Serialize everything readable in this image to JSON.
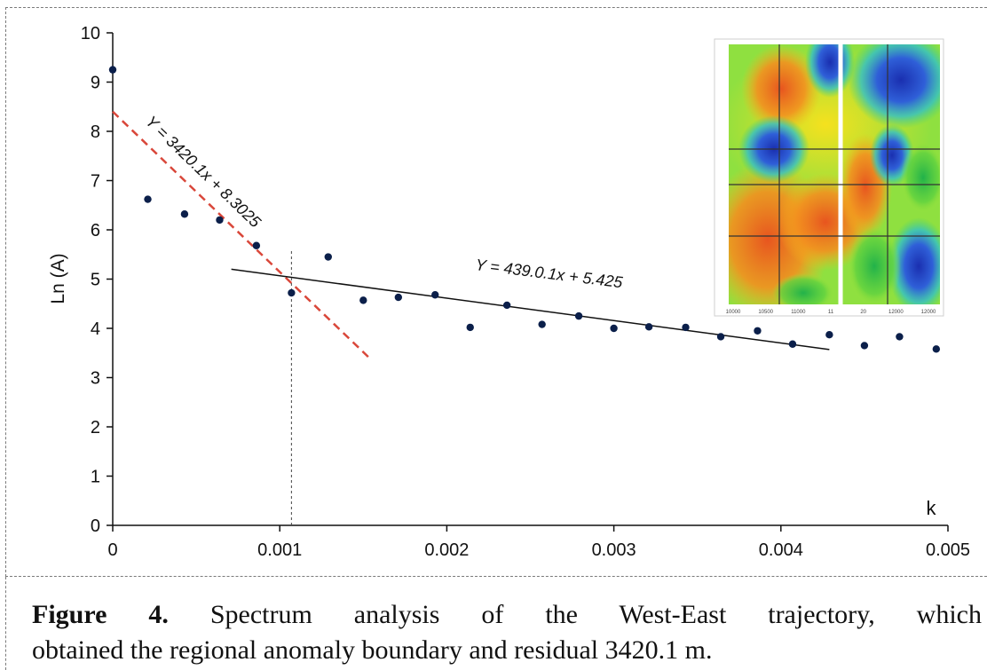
{
  "chart_data": {
    "type": "scatter",
    "title": "",
    "xlabel": "k",
    "ylabel": "Ln (A)",
    "xlim": [
      0,
      0.005
    ],
    "ylim": [
      0,
      10
    ],
    "x_ticks": [
      "0",
      "0.001",
      "0.002",
      "0.003",
      "0.004",
      "0.005"
    ],
    "y_ticks": [
      "0",
      "1",
      "2",
      "3",
      "4",
      "5",
      "6",
      "7",
      "8",
      "9",
      "10"
    ],
    "grid": false,
    "series": [
      {
        "points": [
          {
            "x": 0.0,
            "y": 9.25
          },
          {
            "x": 0.00021,
            "y": 6.62
          },
          {
            "x": 0.00043,
            "y": 6.32
          },
          {
            "x": 0.00064,
            "y": 6.2
          },
          {
            "x": 0.00086,
            "y": 5.68
          },
          {
            "x": 0.00107,
            "y": 4.72
          },
          {
            "x": 0.00129,
            "y": 5.45
          },
          {
            "x": 0.0015,
            "y": 4.57
          },
          {
            "x": 0.00171,
            "y": 4.63
          },
          {
            "x": 0.00193,
            "y": 4.68
          },
          {
            "x": 0.00214,
            "y": 4.02
          },
          {
            "x": 0.00236,
            "y": 4.47
          },
          {
            "x": 0.00257,
            "y": 4.08
          },
          {
            "x": 0.00279,
            "y": 4.25
          },
          {
            "x": 0.003,
            "y": 4.0
          },
          {
            "x": 0.00321,
            "y": 4.03
          },
          {
            "x": 0.00343,
            "y": 4.02
          },
          {
            "x": 0.00364,
            "y": 3.83
          },
          {
            "x": 0.00386,
            "y": 3.95
          },
          {
            "x": 0.00407,
            "y": 3.68
          },
          {
            "x": 0.00429,
            "y": 3.87
          },
          {
            "x": 0.0045,
            "y": 3.65
          },
          {
            "x": 0.00471,
            "y": 3.83
          },
          {
            "x": 0.00493,
            "y": 3.58
          }
        ]
      }
    ],
    "regression_lines": [
      {
        "equation": "Y = 3420.1x + 8.3025",
        "from": [
          0.0,
          8.4
        ],
        "to": [
          0.00153,
          3.42
        ],
        "style": "dashed",
        "color": "#d9473a"
      },
      {
        "equation": "Y = 439.0.1x + 5.425",
        "from": [
          0.00071,
          5.2
        ],
        "to": [
          0.00429,
          3.57
        ],
        "style": "solid",
        "color": "#111111"
      }
    ],
    "boundary_x": 0.00107,
    "boundary_ymax": 5.6
  },
  "caption": {
    "figure_label": "Figure 4.",
    "line1_text": " Spectrum analysis of the West-East trajectory, which",
    "line2_text": "obtained the regional anomaly boundary and residual 3420.1 m."
  },
  "inset_map": {
    "x_ticks": [
      "10000",
      "10500",
      "11000",
      "11",
      "20",
      "12000",
      "12000"
    ]
  },
  "colors": {
    "point": "#0b1f4a",
    "axis": "#111111"
  }
}
